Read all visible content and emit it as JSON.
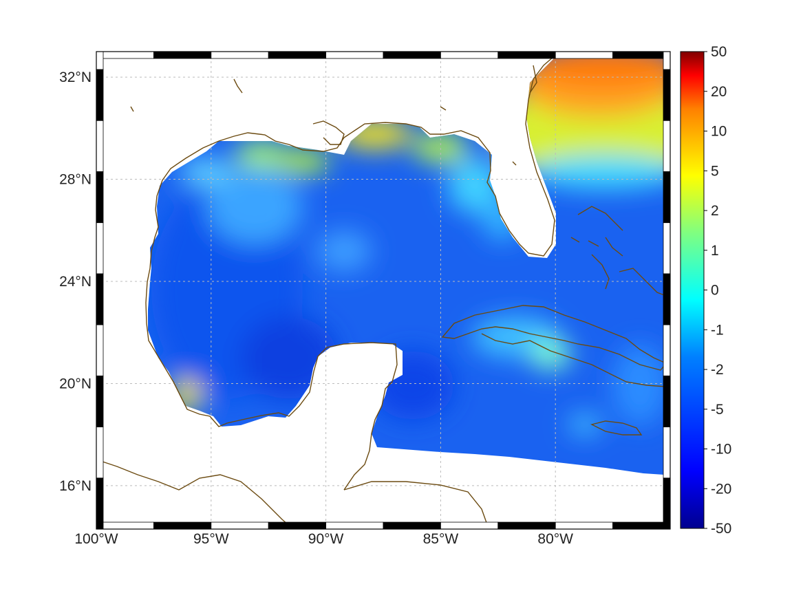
{
  "map": {
    "type": "projected_field_map",
    "region_bounds": {
      "lon": [
        -100,
        -75
      ],
      "lat": [
        14.3,
        33
      ]
    },
    "lon_ticks": [
      {
        "value": -100,
        "label": "100°W"
      },
      {
        "value": -95,
        "label": "95°W"
      },
      {
        "value": -90,
        "label": "90°W"
      },
      {
        "value": -85,
        "label": "85°W"
      },
      {
        "value": -80,
        "label": "80°W"
      }
    ],
    "lat_ticks": [
      {
        "value": 16,
        "label": "16°N"
      },
      {
        "value": 20,
        "label": "20°N"
      },
      {
        "value": 24,
        "label": "24°N"
      },
      {
        "value": 28,
        "label": "28°N"
      },
      {
        "value": 32,
        "label": "32°N"
      }
    ],
    "grid": true,
    "coastline_color": "#6b4a10",
    "land_color": "#ffffff",
    "colormap": "jet"
  },
  "colorbar": {
    "labels": [
      "50",
      "20",
      "10",
      "5",
      "2",
      "1",
      "0",
      "-1",
      "-2",
      "-5",
      "-10",
      "-20",
      "-50"
    ],
    "values": [
      50,
      20,
      10,
      5,
      2,
      1,
      0,
      -1,
      -2,
      -5,
      -10,
      -20,
      -50
    ],
    "colors": [
      "#7f0000",
      "#ff0000",
      "#ff8000",
      "#ffff00",
      "#00ffff",
      "#0080ff",
      "#0000ff",
      "#00008f"
    ]
  }
}
